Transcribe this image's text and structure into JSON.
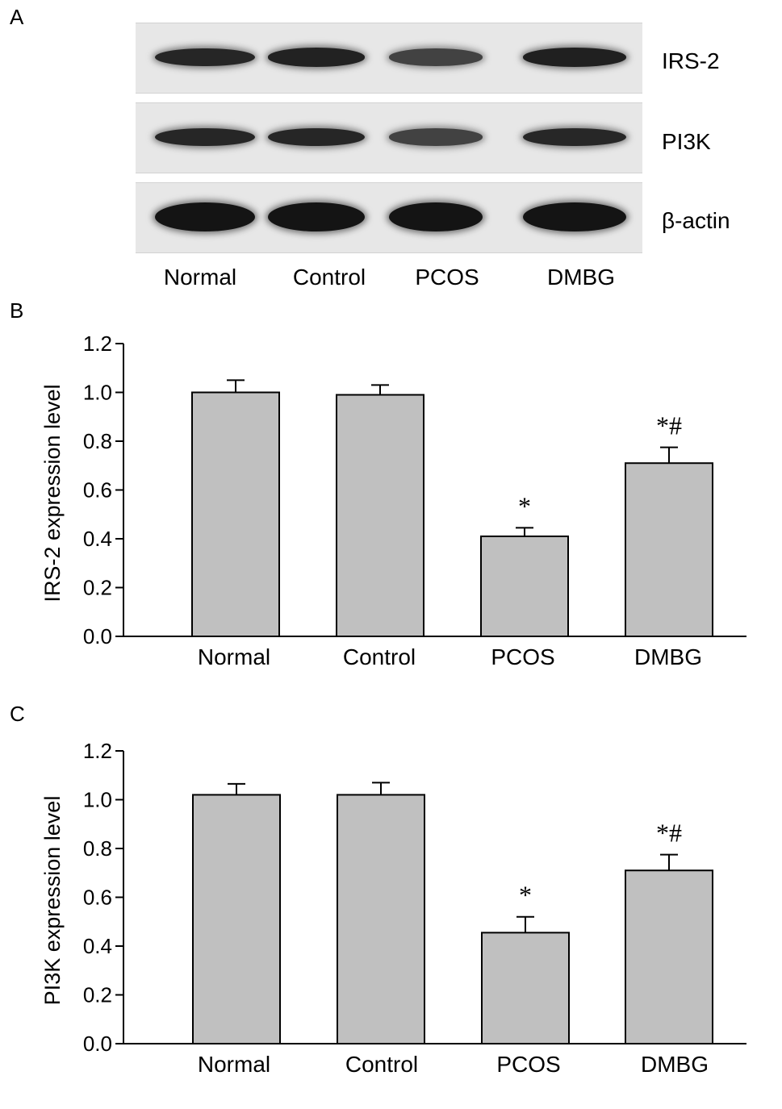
{
  "panels": {
    "a": "A",
    "b": "B",
    "c": "C"
  },
  "blot": {
    "lanes": [
      "Normal",
      "Control",
      "PCOS",
      "DMBG"
    ],
    "rows": [
      {
        "label": "IRS-2",
        "band_intensity": [
          0.85,
          0.88,
          0.62,
          0.9
        ]
      },
      {
        "label": "PI3K",
        "band_intensity": [
          0.85,
          0.85,
          0.62,
          0.84
        ]
      },
      {
        "label": "β-actin",
        "band_intensity": [
          1.0,
          1.0,
          1.0,
          1.0
        ]
      }
    ]
  },
  "chart_data": [
    {
      "type": "bar",
      "title": "",
      "xlabel": "",
      "ylabel": "IRS-2 expression level",
      "categories": [
        "Normal",
        "Control",
        "PCOS",
        "DMBG"
      ],
      "values": [
        1.0,
        0.99,
        0.41,
        0.71
      ],
      "errors": [
        0.05,
        0.04,
        0.035,
        0.065
      ],
      "annotations": [
        "",
        "",
        "*",
        "*#"
      ],
      "ylim": [
        0,
        1.2
      ],
      "yticks": [
        "0.0",
        "0.2",
        "0.4",
        "0.6",
        "0.8",
        "1.0",
        "1.2"
      ],
      "bar_color": "#c0c0c0",
      "grid": false
    },
    {
      "type": "bar",
      "title": "",
      "xlabel": "",
      "ylabel": "PI3K expression level",
      "categories": [
        "Normal",
        "Control",
        "PCOS",
        "DMBG"
      ],
      "values": [
        1.02,
        1.02,
        0.455,
        0.71
      ],
      "errors": [
        0.045,
        0.05,
        0.065,
        0.065
      ],
      "annotations": [
        "",
        "",
        "*",
        "*#"
      ],
      "ylim": [
        0,
        1.2
      ],
      "yticks": [
        "0.0",
        "0.2",
        "0.4",
        "0.6",
        "0.8",
        "1.0",
        "1.2"
      ],
      "bar_color": "#c0c0c0",
      "grid": false
    }
  ]
}
